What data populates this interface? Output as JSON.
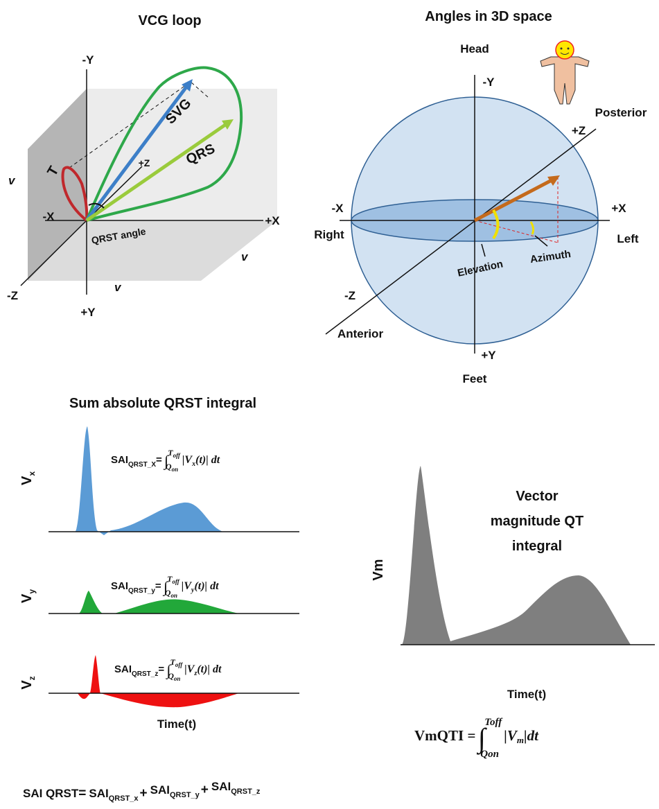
{
  "vcg_loop": {
    "title": "VCG loop",
    "labels": {
      "neg_y": "-Y",
      "pos_y": "+Y",
      "neg_x": "-X",
      "pos_x": "+X",
      "neg_z": "-Z",
      "pos_z": "+Z",
      "v_left": "v",
      "v_right": "v",
      "v_bottom": "v",
      "t_loop": "T",
      "svg": "SVG",
      "qrs": "QRS",
      "qrst_angle": "QRST angle"
    }
  },
  "angles_3d": {
    "title": "Angles in 3D space",
    "labels": {
      "head": "Head",
      "feet": "Feet",
      "posterior": "Posterior",
      "anterior": "Anterior",
      "right": "Right",
      "left": "Left",
      "neg_x": "-X",
      "pos_x": "+X",
      "neg_y": "-Y",
      "pos_y": "+Y",
      "pos_z": "+Z",
      "neg_z": "-Z",
      "elevation": "Elevation",
      "azimuth": "Azimuth"
    }
  },
  "sai": {
    "title": "Sum absolute QRST integral",
    "x_label": "Time(t)",
    "leads": [
      {
        "label": "V",
        "label_sub": "x",
        "formula": {
          "lhs": "SAI",
          "lhs_sub": "QRST_X",
          "eq": "=",
          "sign": "∫",
          "upper": "T",
          "upper_sub": "off",
          "lower": "Q",
          "lower_sub": "on",
          "body": "|V",
          "body_sub": "x",
          "body_end": "(t)| dt"
        }
      },
      {
        "label": "V",
        "label_sub": "y",
        "formula": {
          "lhs": "SAI",
          "lhs_sub": "QRST_y",
          "eq": "=",
          "sign": "∫",
          "upper": "T",
          "upper_sub": "off",
          "lower": "Q",
          "lower_sub": "on",
          "body": "|V",
          "body_sub": "y",
          "body_end": "(t)| dt"
        }
      },
      {
        "label": "V",
        "label_sub": "z",
        "formula": {
          "lhs": "SAI",
          "lhs_sub": "QRST_z",
          "eq": "=",
          "sign": "∫",
          "upper": "T",
          "upper_sub": "off",
          "lower": "Q",
          "lower_sub": "on",
          "body": "|V",
          "body_sub": "z",
          "body_end": "(t)| dt"
        }
      }
    ],
    "total": {
      "lhs": "SAI QRST",
      "eq": "=",
      "plus": "+",
      "terms": [
        {
          "main": "SAI",
          "sub": "QRST_x"
        },
        {
          "main": "SAI",
          "sub": "QRST_y"
        },
        {
          "main": "SAI",
          "sub": "QRST_z"
        }
      ]
    }
  },
  "vmqti": {
    "title_lines": [
      "Vector",
      "magnitude QT",
      "integral"
    ],
    "y_label": "Vm",
    "x_label": "Time(t)",
    "formula": {
      "lhs": "VmQTI",
      "eq": " =",
      "sign": "∫",
      "upper": "Toff",
      "lower": "Qon",
      "body": "|V",
      "body_sub": "m",
      "body_end": "|dt"
    }
  }
}
